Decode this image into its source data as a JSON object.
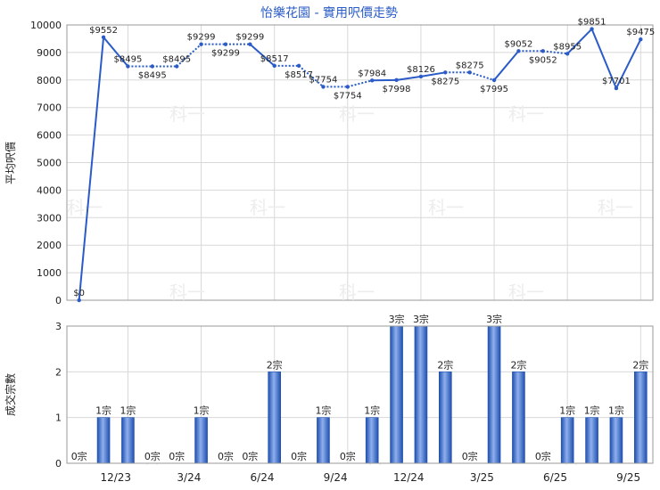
{
  "chart_data": [
    {
      "type": "line",
      "title": "怡樂花園 - 實用呎價走勢",
      "ylabel": "平均呎價",
      "ylim": [
        0,
        10000
      ],
      "yticks": [
        0,
        1000,
        2000,
        3000,
        4000,
        5000,
        6000,
        7000,
        8000,
        9000,
        10000
      ],
      "x_tick_labels": [
        "12/23",
        "3/24",
        "6/24",
        "9/24",
        "12/24",
        "3/25",
        "6/25",
        "9/25"
      ],
      "values": [
        0,
        9552,
        8495,
        8495,
        8495,
        9299,
        9299,
        9299,
        8517,
        8517,
        7754,
        7754,
        7984,
        7998,
        8126,
        8275,
        8275,
        7995,
        9052,
        9052,
        8955,
        9851,
        7701,
        9475
      ],
      "has_transaction": [
        true,
        true,
        true,
        false,
        false,
        true,
        false,
        true,
        true,
        false,
        true,
        false,
        true,
        true,
        true,
        true,
        false,
        true,
        true,
        false,
        true,
        true,
        true,
        true
      ],
      "point_labels": [
        "$0",
        "$9552",
        "$8495",
        "$8495",
        "$8495",
        "$9299",
        "$9299",
        "$9299",
        "$8517",
        "$8517",
        "$7754",
        "$7754",
        "$7984",
        "$7998",
        "$8126",
        "$8275",
        "$8275",
        "$7995",
        "$9052",
        "$9052",
        "$8955",
        "$9851",
        "$7701",
        "$9475"
      ],
      "label_below": [
        false,
        false,
        false,
        true,
        false,
        false,
        true,
        false,
        false,
        true,
        false,
        true,
        false,
        true,
        false,
        true,
        false,
        true,
        false,
        true,
        false,
        false,
        false,
        false
      ],
      "line_color": "#2a5bc7",
      "grid": true
    },
    {
      "type": "bar",
      "ylabel": "成交宗數",
      "ylim": [
        0,
        3
      ],
      "yticks": [
        0,
        1,
        2,
        3
      ],
      "values": [
        0,
        1,
        1,
        0,
        0,
        1,
        0,
        0,
        2,
        0,
        1,
        0,
        1,
        3,
        3,
        2,
        0,
        3,
        2,
        0,
        1,
        1,
        1,
        2
      ],
      "bar_labels": [
        "0宗",
        "1宗",
        "1宗",
        "0宗",
        "0宗",
        "1宗",
        "0宗",
        "0宗",
        "2宗",
        "0宗",
        "1宗",
        "0宗",
        "1宗",
        "3宗",
        "3宗",
        "2宗",
        "0宗",
        "3宗",
        "2宗",
        "0宗",
        "1宗",
        "1宗",
        "1宗",
        "2宗"
      ],
      "x_tick_labels": [
        "12/23",
        "3/24",
        "6/24",
        "9/24",
        "12/24",
        "3/25",
        "6/25",
        "9/25"
      ],
      "bar_color": "#3a66c4",
      "grid": true
    }
  ],
  "watermark": "科一"
}
